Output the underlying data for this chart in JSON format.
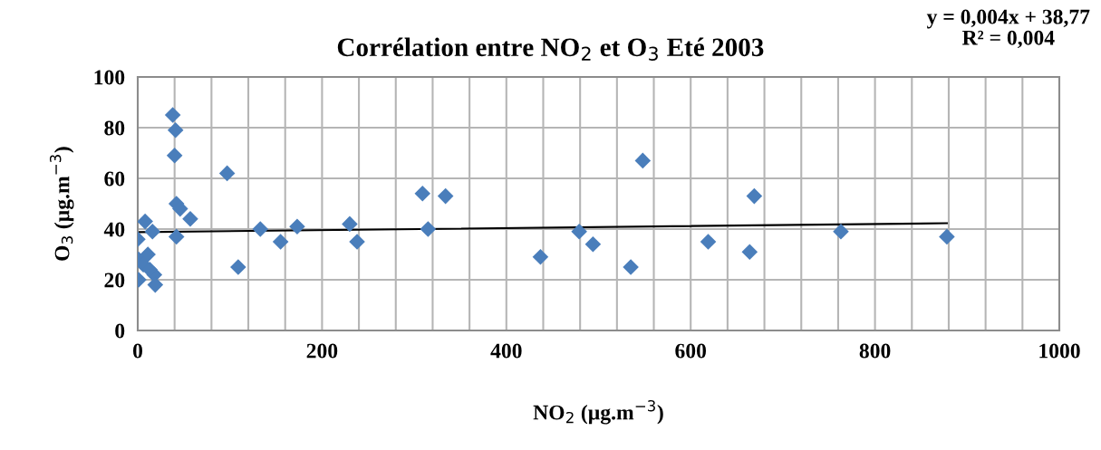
{
  "chart_data": {
    "type": "scatter",
    "title": "Corrélation entre NO$_{2}$ et O$_{3}$ Eté 2003",
    "xlabel": "NO$_{2}$ (µg.m$^{−3}$)",
    "ylabel": "O$_{3}$ (µg.m$^{−3}$)",
    "annotations": [
      "y = 0,004x + 38,77\nR² = 0,004"
    ],
    "series": [
      {
        "color": "#4a7ebb",
        "marker": "diamond",
        "x": [
          38,
          41,
          40,
          97,
          42,
          46,
          57,
          42,
          8,
          16,
          0,
          133,
          155,
          173,
          109,
          11,
          1,
          6,
          1,
          18,
          19,
          13,
          230,
          238,
          309,
          334,
          315,
          437,
          479,
          494,
          535,
          548,
          619,
          669,
          664,
          763,
          878
        ],
        "values": [
          85,
          79,
          69,
          62,
          50,
          48,
          44,
          37,
          43,
          39,
          36,
          40,
          35,
          41,
          25,
          30,
          28,
          26,
          20,
          22,
          18,
          24,
          42,
          35,
          54,
          53,
          40,
          29,
          39,
          34,
          25,
          67,
          35,
          53,
          31,
          39,
          37
        ]
      },
      {
        "type": "line",
        "color": "#000000",
        "marker": "none",
        "line_style": "solid",
        "x": [
          0,
          878
        ],
        "values": [
          38.8,
          42.3
        ]
      }
    ],
    "xlim": [
      0,
      1000
    ],
    "ylim": [
      0,
      100
    ],
    "xticks": [
      0,
      {
        "value": 40,
        "label": null
      },
      {
        "value": 80,
        "label": null
      },
      {
        "value": 120,
        "label": null
      },
      {
        "value": 160,
        "label": null
      },
      200,
      {
        "value": 240,
        "label": null
      },
      {
        "value": 280,
        "label": null
      },
      {
        "value": 320,
        "label": null
      },
      {
        "value": 360,
        "label": null
      },
      400,
      {
        "value": 440,
        "label": null
      },
      {
        "value": 480,
        "label": null
      },
      {
        "value": 520,
        "label": null
      },
      {
        "value": 560,
        "label": null
      },
      600,
      {
        "value": 640,
        "label": null
      },
      {
        "value": 680,
        "label": null
      },
      {
        "value": 720,
        "label": null
      },
      {
        "value": 760,
        "label": null
      },
      800,
      {
        "value": 840,
        "label": null
      },
      {
        "value": 880,
        "label": null
      },
      {
        "value": 920,
        "label": null
      },
      {
        "value": 960,
        "label": null
      },
      1000
    ],
    "yticks": [
      0,
      20,
      40,
      60,
      80,
      100
    ],
    "grid": true
  }
}
